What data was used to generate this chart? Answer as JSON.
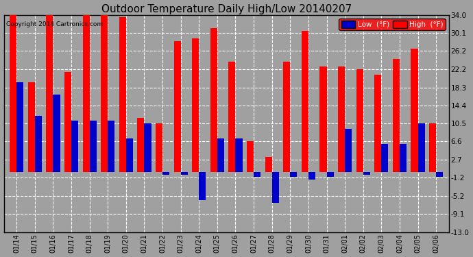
{
  "title": "Outdoor Temperature Daily High/Low 20140207",
  "copyright": "Copyright 2014 Cartronics.com",
  "legend_low": "Low  (°F)",
  "legend_high": "High  (°F)",
  "background_color": "#a0a0a0",
  "plot_background": "#a0a0a0",
  "dates": [
    "01/14",
    "01/15",
    "01/16",
    "01/17",
    "01/18",
    "01/19",
    "01/20",
    "01/21",
    "01/22",
    "01/23",
    "01/24",
    "01/25",
    "01/26",
    "01/27",
    "01/28",
    "01/29",
    "01/30",
    "01/31",
    "02/01",
    "02/02",
    "02/03",
    "02/04",
    "02/05",
    "02/06"
  ],
  "highs": [
    34.0,
    19.4,
    33.9,
    21.7,
    33.9,
    34.0,
    33.5,
    11.7,
    10.6,
    28.3,
    28.9,
    31.1,
    23.9,
    6.7,
    3.3,
    23.9,
    30.6,
    22.8,
    22.8,
    22.2,
    21.1,
    24.4,
    26.7,
    10.6
  ],
  "lows": [
    19.4,
    12.2,
    16.7,
    11.1,
    11.1,
    11.1,
    7.2,
    10.6,
    -0.6,
    -0.6,
    -6.1,
    7.2,
    7.2,
    -1.1,
    -6.7,
    -1.1,
    -1.7,
    -1.1,
    9.4,
    -0.6,
    6.1,
    6.1,
    10.6,
    -1.1
  ],
  "ylim": [
    -13.0,
    34.0
  ],
  "yticks": [
    -13.0,
    -9.1,
    -5.2,
    -1.2,
    2.7,
    6.6,
    10.5,
    14.4,
    18.3,
    22.2,
    26.2,
    30.1,
    34.0
  ],
  "bar_width": 0.38,
  "high_color": "#ff0000",
  "low_color": "#0000cc",
  "grid_color": "white",
  "title_fontsize": 11,
  "figsize": [
    6.9,
    3.75
  ],
  "dpi": 100
}
